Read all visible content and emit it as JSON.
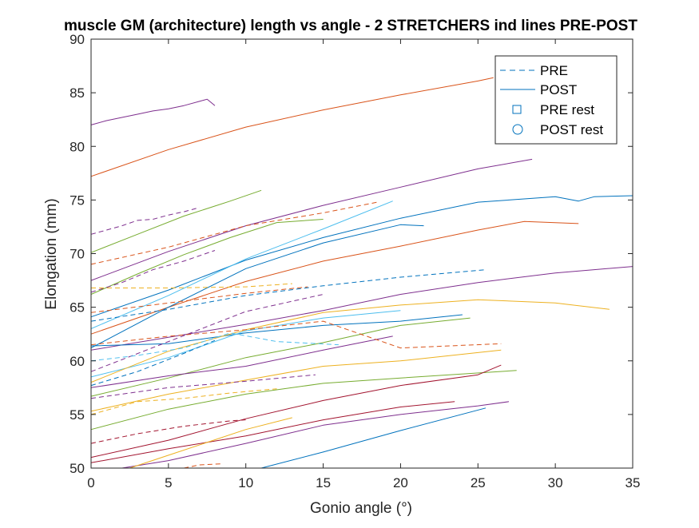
{
  "chart_data": {
    "type": "line",
    "title": "muscle GM (architecture) length vs angle - 2 STRETCHERS ind lines PRE-POST",
    "xlabel": "Gonio angle (°)",
    "ylabel": "Elongation (mm)",
    "xlim": [
      0,
      35
    ],
    "ylim": [
      50,
      90
    ],
    "xticks": [
      0,
      5,
      10,
      15,
      20,
      25,
      30,
      35
    ],
    "yticks": [
      50,
      55,
      60,
      65,
      70,
      75,
      80,
      85,
      90
    ],
    "grid": false,
    "legend": {
      "placement": "top-right",
      "entries": [
        {
          "label": "PRE",
          "marker": "dashed-line"
        },
        {
          "label": "POST",
          "marker": "solid-line"
        },
        {
          "label": "PRE rest",
          "marker": "square"
        },
        {
          "label": "POST rest",
          "marker": "circle"
        }
      ]
    },
    "colors": {
      "blue": "#0072BD",
      "orange": "#D95319",
      "yellow": "#EDB120",
      "purple": "#7E2F8E",
      "green": "#77AC30",
      "cyan": "#4DBEEE",
      "maroon": "#A2142F",
      "axis": "#262626"
    },
    "series": [
      {
        "name": "POST purple top",
        "color": "purple",
        "style": "solid",
        "x": [
          0,
          1,
          2,
          3,
          4,
          5,
          6,
          7,
          7.5,
          8
        ],
        "y": [
          82,
          82.4,
          82.7,
          83,
          83.3,
          83.5,
          83.8,
          84.2,
          84.4,
          83.8
        ]
      },
      {
        "name": "POST orange 77",
        "color": "orange",
        "style": "solid",
        "x": [
          0,
          5,
          10,
          15,
          20,
          25,
          26
        ],
        "y": [
          77.2,
          79.7,
          81.8,
          83.4,
          84.8,
          86.1,
          86.4
        ]
      },
      {
        "name": "POST purple 67.5",
        "color": "purple",
        "style": "solid",
        "x": [
          0,
          5,
          10,
          15,
          20,
          25,
          28.5
        ],
        "y": [
          67.5,
          70.2,
          72.6,
          74.5,
          76.2,
          77.9,
          78.8
        ]
      },
      {
        "name": "POST blue 64",
        "color": "blue",
        "style": "solid",
        "x": [
          0,
          5,
          10,
          15,
          20,
          25,
          30,
          31.5,
          32.5,
          35
        ],
        "y": [
          64.1,
          66.6,
          69.4,
          71.5,
          73.3,
          74.8,
          75.3,
          74.9,
          75.3,
          75.4
        ]
      },
      {
        "name": "POST orange 62.5",
        "color": "orange",
        "style": "solid",
        "x": [
          0,
          5,
          10,
          15,
          20,
          25,
          28,
          31.5
        ],
        "y": [
          62.5,
          65,
          67.4,
          69.3,
          70.7,
          72.2,
          73,
          72.8
        ]
      },
      {
        "name": "POST purple 61",
        "color": "purple",
        "style": "solid",
        "x": [
          0,
          5,
          10,
          15,
          20,
          25,
          30,
          35
        ],
        "y": [
          61,
          62.2,
          63.4,
          64.7,
          66.2,
          67.3,
          68.2,
          68.8
        ]
      },
      {
        "name": "POST green 70",
        "color": "green",
        "style": "solid",
        "x": [
          0,
          3,
          6,
          9,
          11
        ],
        "y": [
          70.1,
          71.8,
          73.5,
          74.9,
          75.9
        ]
      },
      {
        "name": "POST green 66",
        "color": "green",
        "style": "solid",
        "x": [
          0,
          3,
          6,
          9,
          12,
          15
        ],
        "y": [
          66.2,
          68.1,
          69.9,
          71.5,
          72.9,
          73.2
        ]
      },
      {
        "name": "POST cyan steep",
        "color": "cyan",
        "style": "solid",
        "x": [
          0,
          5,
          10,
          15,
          19.5
        ],
        "y": [
          63,
          66.1,
          69.5,
          72.3,
          74.9
        ]
      },
      {
        "name": "POST blue 61",
        "color": "blue",
        "style": "solid",
        "x": [
          0,
          5,
          10,
          15,
          20,
          21.5
        ],
        "y": [
          61.2,
          65,
          68.6,
          71,
          72.7,
          72.6
        ]
      },
      {
        "name": "POST blue mid",
        "color": "blue",
        "style": "solid",
        "x": [
          0,
          5,
          10,
          15,
          20,
          24
        ],
        "y": [
          61.4,
          61.6,
          62.6,
          63.3,
          63.7,
          64.3
        ]
      },
      {
        "name": "POST cyan mid",
        "color": "cyan",
        "style": "solid",
        "x": [
          0,
          5,
          10,
          15,
          20
        ],
        "y": [
          58.5,
          60.3,
          62.8,
          64,
          64.7
        ]
      },
      {
        "name": "POST yellow 58",
        "color": "yellow",
        "style": "solid",
        "x": [
          0,
          5,
          10,
          15,
          20,
          25,
          30,
          33.5
        ],
        "y": [
          58,
          60.9,
          62.9,
          64.5,
          65.2,
          65.7,
          65.4,
          64.8
        ]
      },
      {
        "name": "POST green 58",
        "color": "green",
        "style": "solid",
        "x": [
          0,
          5,
          10,
          15,
          20,
          24.5
        ],
        "y": [
          56.7,
          58.4,
          60.3,
          61.7,
          63.3,
          64
        ]
      },
      {
        "name": "POST purple 57",
        "color": "purple",
        "style": "solid",
        "x": [
          0,
          5,
          10,
          15,
          19.5
        ],
        "y": [
          57.5,
          58.6,
          59.5,
          61,
          62.3
        ]
      },
      {
        "name": "POST yellow 55",
        "color": "yellow",
        "style": "solid",
        "x": [
          0,
          5,
          10,
          15,
          20,
          26.5
        ],
        "y": [
          55.3,
          56.9,
          58.2,
          59.5,
          60,
          61
        ]
      },
      {
        "name": "POST green 53.5",
        "color": "green",
        "style": "solid",
        "x": [
          0,
          5,
          10,
          15,
          20,
          27.5
        ],
        "y": [
          53.6,
          55.5,
          56.9,
          57.9,
          58.4,
          59.1
        ]
      },
      {
        "name": "POST maroon 51",
        "color": "maroon",
        "style": "solid",
        "x": [
          0,
          5,
          10,
          15,
          20,
          25,
          26.5
        ],
        "y": [
          51,
          52.6,
          54.6,
          56.3,
          57.7,
          58.7,
          59.6
        ]
      },
      {
        "name": "POST maroon 50.5",
        "color": "maroon",
        "style": "solid",
        "x": [
          0,
          5,
          10,
          15,
          20,
          23.5
        ],
        "y": [
          50.5,
          51.8,
          53,
          54.5,
          55.7,
          56.2
        ]
      },
      {
        "name": "POST purple 50",
        "color": "purple",
        "style": "solid",
        "x": [
          2,
          5,
          10,
          15,
          20,
          25,
          27
        ],
        "y": [
          50,
          50.7,
          52.3,
          54,
          55,
          55.8,
          56.2
        ]
      },
      {
        "name": "POST yellow 50",
        "color": "yellow",
        "style": "solid",
        "x": [
          2.5,
          5,
          10,
          13
        ],
        "y": [
          50,
          51.2,
          53.6,
          54.7
        ]
      },
      {
        "name": "POST blue low",
        "color": "blue",
        "style": "solid",
        "x": [
          11,
          15,
          20,
          25.5
        ],
        "y": [
          50,
          51.5,
          53.5,
          55.6
        ]
      },
      {
        "name": "PRE purple 72",
        "color": "purple",
        "style": "dashed",
        "x": [
          0,
          1,
          2,
          3,
          4,
          5,
          6,
          7
        ],
        "y": [
          71.8,
          72.2,
          72.6,
          73.1,
          73.2,
          73.6,
          73.9,
          74.3
        ]
      },
      {
        "name": "PRE orange 69",
        "color": "orange",
        "style": "dashed",
        "x": [
          0,
          5,
          10,
          15,
          18.5
        ],
        "y": [
          69,
          70.6,
          72.6,
          73.8,
          74.8
        ]
      },
      {
        "name": "PRE purple 66.5",
        "color": "purple",
        "style": "dashed",
        "x": [
          0,
          2,
          4,
          6,
          8
        ],
        "y": [
          66.4,
          67.3,
          68.5,
          69.3,
          70.3
        ]
      },
      {
        "name": "PRE yellow 67",
        "color": "yellow",
        "style": "dashed",
        "x": [
          0,
          5,
          10,
          13
        ],
        "y": [
          66.8,
          66.8,
          66.9,
          67.2
        ]
      },
      {
        "name": "PRE blue 63.5",
        "color": "blue",
        "style": "dashed",
        "x": [
          0,
          5,
          10,
          15,
          20,
          25.5
        ],
        "y": [
          63.7,
          64.8,
          66.1,
          67,
          67.8,
          68.5
        ]
      },
      {
        "name": "PRE orange 64",
        "color": "orange",
        "style": "dashed",
        "x": [
          0,
          5,
          10,
          14
        ],
        "y": [
          64.5,
          65.4,
          66.3,
          66.9
        ]
      },
      {
        "name": "PRE purple 59",
        "color": "purple",
        "style": "dashed",
        "x": [
          0,
          5,
          10,
          15
        ],
        "y": [
          59,
          61.8,
          64.6,
          66.2
        ]
      },
      {
        "name": "PRE cyan 60",
        "color": "cyan",
        "style": "dashed",
        "x": [
          0,
          3,
          6,
          9,
          12,
          16
        ],
        "y": [
          60,
          60.5,
          61.2,
          62.6,
          61.8,
          61.5
        ]
      },
      {
        "name": "PRE blue 57.8",
        "color": "blue",
        "style": "dashed",
        "x": [
          0,
          3,
          6,
          8
        ],
        "y": [
          57.7,
          59,
          60.7,
          61.9
        ]
      },
      {
        "name": "PRE orange 61.5",
        "color": "orange",
        "style": "dashed",
        "x": [
          0,
          5,
          10,
          15,
          20,
          26.5
        ],
        "y": [
          61.5,
          62.3,
          62.9,
          63.7,
          61.2,
          61.6
        ]
      },
      {
        "name": "PRE purple 56.5",
        "color": "purple",
        "style": "dashed",
        "x": [
          0,
          5,
          10,
          14.5
        ],
        "y": [
          56.5,
          57.5,
          58.1,
          58.7
        ]
      },
      {
        "name": "PRE yellow 55",
        "color": "yellow",
        "style": "dashed",
        "x": [
          0,
          3,
          6,
          9,
          12
        ],
        "y": [
          55,
          56.2,
          56.5,
          57,
          57.4
        ]
      },
      {
        "name": "PRE maroon 52.5",
        "color": "maroon",
        "style": "dashed",
        "x": [
          0,
          3,
          6,
          9,
          10
        ],
        "y": [
          52.3,
          53.2,
          53.9,
          54.4,
          54.5
        ]
      },
      {
        "name": "PRE orange low",
        "color": "orange",
        "style": "dashed",
        "x": [
          6,
          7,
          8.5
        ],
        "y": [
          50,
          50.3,
          50.4
        ]
      }
    ]
  }
}
